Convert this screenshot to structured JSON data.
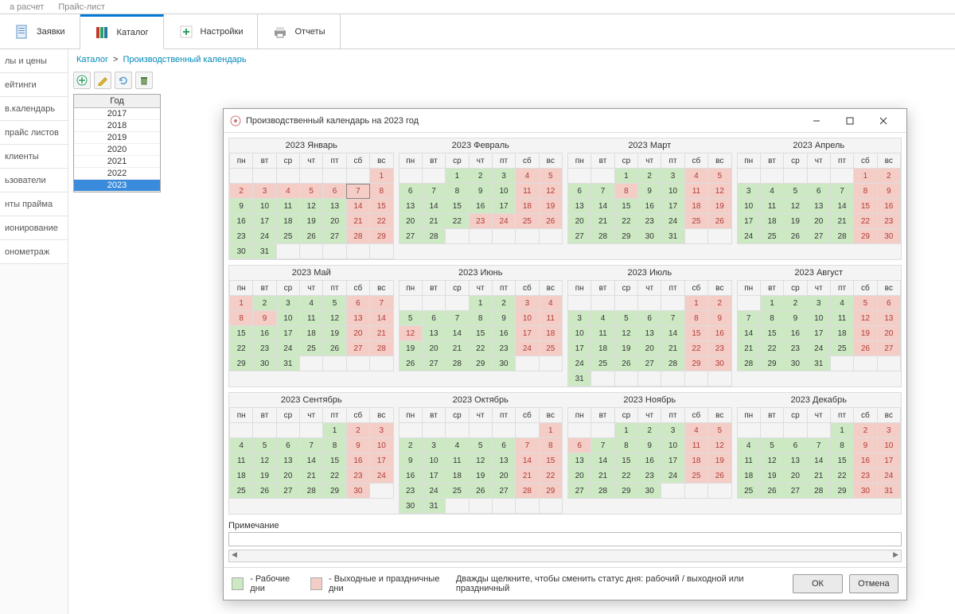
{
  "topNav": {
    "tab1": "а расчет",
    "tab2": "Прайс-лист"
  },
  "mainTabs": {
    "requests": "Заявки",
    "catalog": "Каталог",
    "settings": "Настройки",
    "reports": "Отчеты"
  },
  "sidebar": [
    "лы и цены",
    "ейтинги",
    "в.календарь",
    "прайс листов",
    "клиенты",
    "ьзователи",
    "нты прайма",
    "ионирование",
    "онометраж"
  ],
  "breadcrumb": {
    "root": "Каталог",
    "sep": ">",
    "cur": "Производственный календарь"
  },
  "yearPanel": {
    "header": "Год",
    "years": [
      "2017",
      "2018",
      "2019",
      "2020",
      "2021",
      "2022",
      "2023"
    ],
    "selected": "2023"
  },
  "dialog": {
    "title": "Производственный календарь на 2023 год",
    "notesLabel": "Примечание",
    "legendWork": "- Рабочие дни",
    "legendOff": "- Выходные и праздничные дни",
    "hint": "Дважды щелкните, чтобы сменить статус дня: рабочий / выходной или праздничный",
    "ok": "ОК",
    "cancel": "Отмена"
  },
  "dow": [
    "пн",
    "вт",
    "ср",
    "чт",
    "пт",
    "сб",
    "вс"
  ],
  "colors": {
    "work": "#cde9c4",
    "off": "#f4cdc7",
    "offText": "#b03c34",
    "panel": "#f4f4f4",
    "border": "#dddddd"
  },
  "months": [
    {
      "title": "2023 Январь",
      "start": 6,
      "days": 31,
      "today": 7,
      "off": [
        1,
        2,
        3,
        4,
        5,
        6,
        7,
        8,
        14,
        15,
        21,
        22,
        28,
        29
      ]
    },
    {
      "title": "2023 Февраль",
      "start": 2,
      "days": 28,
      "off": [
        4,
        5,
        11,
        12,
        18,
        19,
        23,
        24,
        25,
        26
      ]
    },
    {
      "title": "2023 Март",
      "start": 2,
      "days": 31,
      "off": [
        4,
        5,
        8,
        11,
        12,
        18,
        19,
        25,
        26
      ]
    },
    {
      "title": "2023 Апрель",
      "start": 5,
      "days": 30,
      "off": [
        1,
        2,
        8,
        9,
        15,
        16,
        22,
        23,
        29,
        30
      ]
    },
    {
      "title": "2023 Май",
      "start": 0,
      "days": 31,
      "off": [
        1,
        6,
        7,
        8,
        9,
        13,
        14,
        20,
        21,
        27,
        28
      ]
    },
    {
      "title": "2023 Июнь",
      "start": 3,
      "days": 30,
      "off": [
        3,
        4,
        10,
        11,
        12,
        17,
        18,
        24,
        25
      ]
    },
    {
      "title": "2023 Июль",
      "start": 5,
      "days": 31,
      "off": [
        1,
        2,
        8,
        9,
        15,
        16,
        22,
        23,
        29,
        30
      ]
    },
    {
      "title": "2023 Август",
      "start": 1,
      "days": 31,
      "off": [
        5,
        6,
        12,
        13,
        19,
        20,
        26,
        27
      ]
    },
    {
      "title": "2023 Сентябрь",
      "start": 4,
      "days": 30,
      "off": [
        2,
        3,
        9,
        10,
        16,
        17,
        23,
        24,
        30
      ]
    },
    {
      "title": "2023 Октябрь",
      "start": 6,
      "days": 31,
      "off": [
        1,
        7,
        8,
        14,
        15,
        21,
        22,
        28,
        29
      ]
    },
    {
      "title": "2023 Ноябрь",
      "start": 2,
      "days": 30,
      "off": [
        4,
        5,
        6,
        11,
        12,
        18,
        19,
        25,
        26
      ]
    },
    {
      "title": "2023 Декабрь",
      "start": 4,
      "days": 31,
      "off": [
        2,
        3,
        9,
        10,
        16,
        17,
        23,
        24,
        30,
        31
      ]
    }
  ]
}
